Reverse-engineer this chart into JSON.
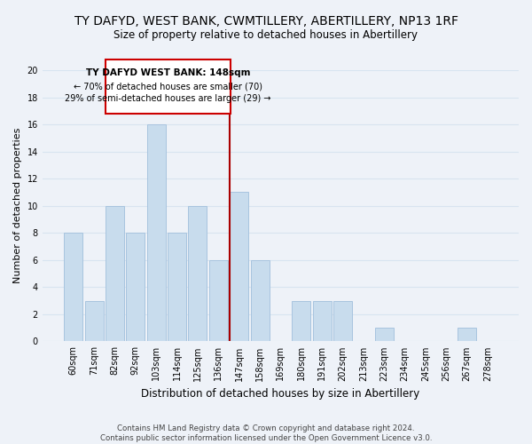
{
  "title": "TY DAFYD, WEST BANK, CWMTILLERY, ABERTILLERY, NP13 1RF",
  "subtitle": "Size of property relative to detached houses in Abertillery",
  "xlabel": "Distribution of detached houses by size in Abertillery",
  "ylabel": "Number of detached properties",
  "bar_labels": [
    "60sqm",
    "71sqm",
    "82sqm",
    "92sqm",
    "103sqm",
    "114sqm",
    "125sqm",
    "136sqm",
    "147sqm",
    "158sqm",
    "169sqm",
    "180sqm",
    "191sqm",
    "202sqm",
    "213sqm",
    "223sqm",
    "234sqm",
    "245sqm",
    "256sqm",
    "267sqm",
    "278sqm"
  ],
  "bar_values": [
    8,
    3,
    10,
    8,
    16,
    8,
    10,
    6,
    11,
    6,
    0,
    3,
    3,
    3,
    0,
    1,
    0,
    0,
    0,
    1,
    0
  ],
  "bar_color": "#c8dced",
  "bar_edge_color": "#a8c4df",
  "vline_color": "#aa0000",
  "annotation_title": "TY DAFYD WEST BANK: 148sqm",
  "annotation_line1": "← 70% of detached houses are smaller (70)",
  "annotation_line2": "29% of semi-detached houses are larger (29) →",
  "annotation_box_color": "#cc0000",
  "ylim": [
    0,
    20
  ],
  "yticks": [
    0,
    2,
    4,
    6,
    8,
    10,
    12,
    14,
    16,
    18,
    20
  ],
  "grid_color": "#d8e4f0",
  "background_color": "#eef2f8",
  "footer_line1": "Contains HM Land Registry data © Crown copyright and database right 2024.",
  "footer_line2": "Contains public sector information licensed under the Open Government Licence v3.0."
}
